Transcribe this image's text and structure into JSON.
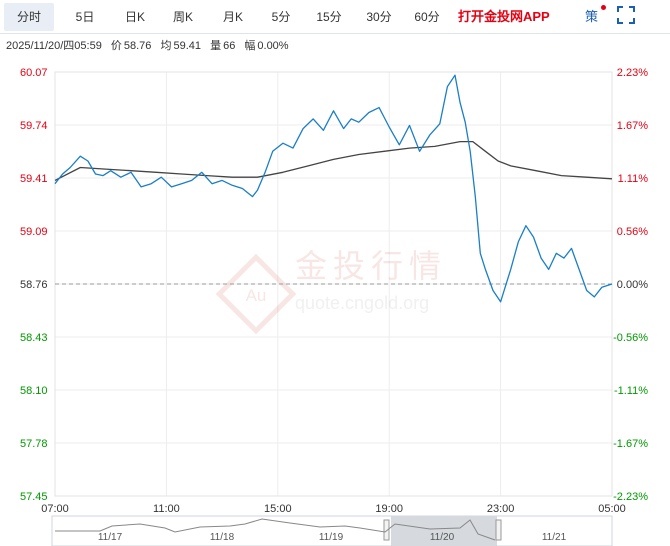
{
  "tabs": [
    {
      "label": "分时",
      "active": true
    },
    {
      "label": "5日"
    },
    {
      "label": "日K"
    },
    {
      "label": "周K"
    },
    {
      "label": "月K"
    },
    {
      "label": "5分"
    },
    {
      "label": "15分"
    },
    {
      "label": "30分"
    },
    {
      "label": "60分"
    }
  ],
  "app_link": "打开金投网APP",
  "strategy_label": "策",
  "info": {
    "datetime": "2025/11/20/四05:59",
    "price_label": "价",
    "price": "58.76",
    "avg_label": "均",
    "avg": "59.41",
    "volume_label": "量",
    "volume": "66",
    "change_label": "幅",
    "change": "0.00%"
  },
  "watermark": {
    "logo_text": "Au",
    "brand": "金投行情",
    "url": "quote.cngold.org"
  },
  "colors": {
    "up": "#e60012",
    "down": "#009900",
    "neutral": "#333333",
    "price_line": "#1a7fc7",
    "avg_line": "#444444",
    "grid": "#ededed",
    "baseline": "#999999"
  },
  "chart_data": {
    "type": "line",
    "y_left_ticks": [
      "60.07",
      "59.74",
      "59.41",
      "59.09",
      "58.76",
      "58.43",
      "58.10",
      "57.78",
      "57.45"
    ],
    "y_right_ticks": [
      "2.23%",
      "1.67%",
      "1.11%",
      "0.56%",
      "0.00%",
      "-0.56%",
      "-1.11%",
      "-1.67%",
      "-2.23%"
    ],
    "ylim": [
      57.45,
      60.07
    ],
    "prev_close": 58.76,
    "x_ticks": [
      "07:00",
      "11:00",
      "15:00",
      "19:00",
      "23:00",
      "05:00"
    ],
    "xlim_hours": [
      7,
      29
    ],
    "series": [
      {
        "role": "price",
        "x": [
          7.0,
          7.3,
          7.6,
          8.0,
          8.3,
          8.6,
          8.9,
          9.2,
          9.6,
          10.0,
          10.4,
          10.8,
          11.2,
          11.6,
          12.0,
          12.4,
          12.8,
          13.2,
          13.6,
          14.0,
          14.4,
          14.8,
          15.0,
          15.3,
          15.6,
          16.0,
          16.4,
          16.8,
          17.2,
          17.6,
          18.0,
          18.4,
          18.7,
          19.0,
          19.4,
          19.8,
          20.2,
          20.6,
          21.0,
          21.4,
          21.8,
          22.2,
          22.5,
          22.8,
          23.0,
          23.2,
          23.4,
          23.6,
          23.8,
          24.0,
          24.3,
          24.6,
          25.0,
          25.3,
          25.6,
          25.9,
          26.2,
          26.5,
          26.8,
          27.1,
          27.4,
          27.7,
          28.0,
          28.3,
          28.6,
          29.0
        ],
        "y": [
          59.38,
          59.44,
          59.48,
          59.55,
          59.52,
          59.44,
          59.43,
          59.46,
          59.42,
          59.45,
          59.36,
          59.38,
          59.42,
          59.36,
          59.38,
          59.4,
          59.45,
          59.38,
          59.4,
          59.37,
          59.35,
          59.3,
          59.34,
          59.45,
          59.58,
          59.63,
          59.6,
          59.72,
          59.78,
          59.71,
          59.83,
          59.72,
          59.78,
          59.76,
          59.82,
          59.85,
          59.73,
          59.62,
          59.74,
          59.58,
          59.68,
          59.75,
          59.98,
          60.05,
          59.88,
          59.76,
          59.58,
          59.3,
          58.95,
          58.85,
          58.72,
          58.65,
          58.85,
          59.02,
          59.12,
          59.05,
          58.92,
          58.85,
          58.95,
          58.92,
          58.98,
          58.85,
          58.72,
          58.68,
          58.74,
          58.76
        ]
      },
      {
        "role": "average",
        "x": [
          7.0,
          8.0,
          9.0,
          10.0,
          11.0,
          12.0,
          13.0,
          14.0,
          15.0,
          16.0,
          17.0,
          18.0,
          19.0,
          20.0,
          21.0,
          22.0,
          23.0,
          23.5,
          24.0,
          24.5,
          25.0,
          26.0,
          27.0,
          28.0,
          29.0
        ],
        "y": [
          59.4,
          59.48,
          59.47,
          59.46,
          59.45,
          59.44,
          59.43,
          59.42,
          59.42,
          59.45,
          59.49,
          59.53,
          59.56,
          59.58,
          59.6,
          59.61,
          59.64,
          59.64,
          59.58,
          59.52,
          59.49,
          59.46,
          59.43,
          59.42,
          59.41
        ]
      }
    ]
  },
  "navigator": {
    "labels": [
      "11/17",
      "11/18",
      "11/19",
      "11/20",
      "11/21"
    ]
  }
}
